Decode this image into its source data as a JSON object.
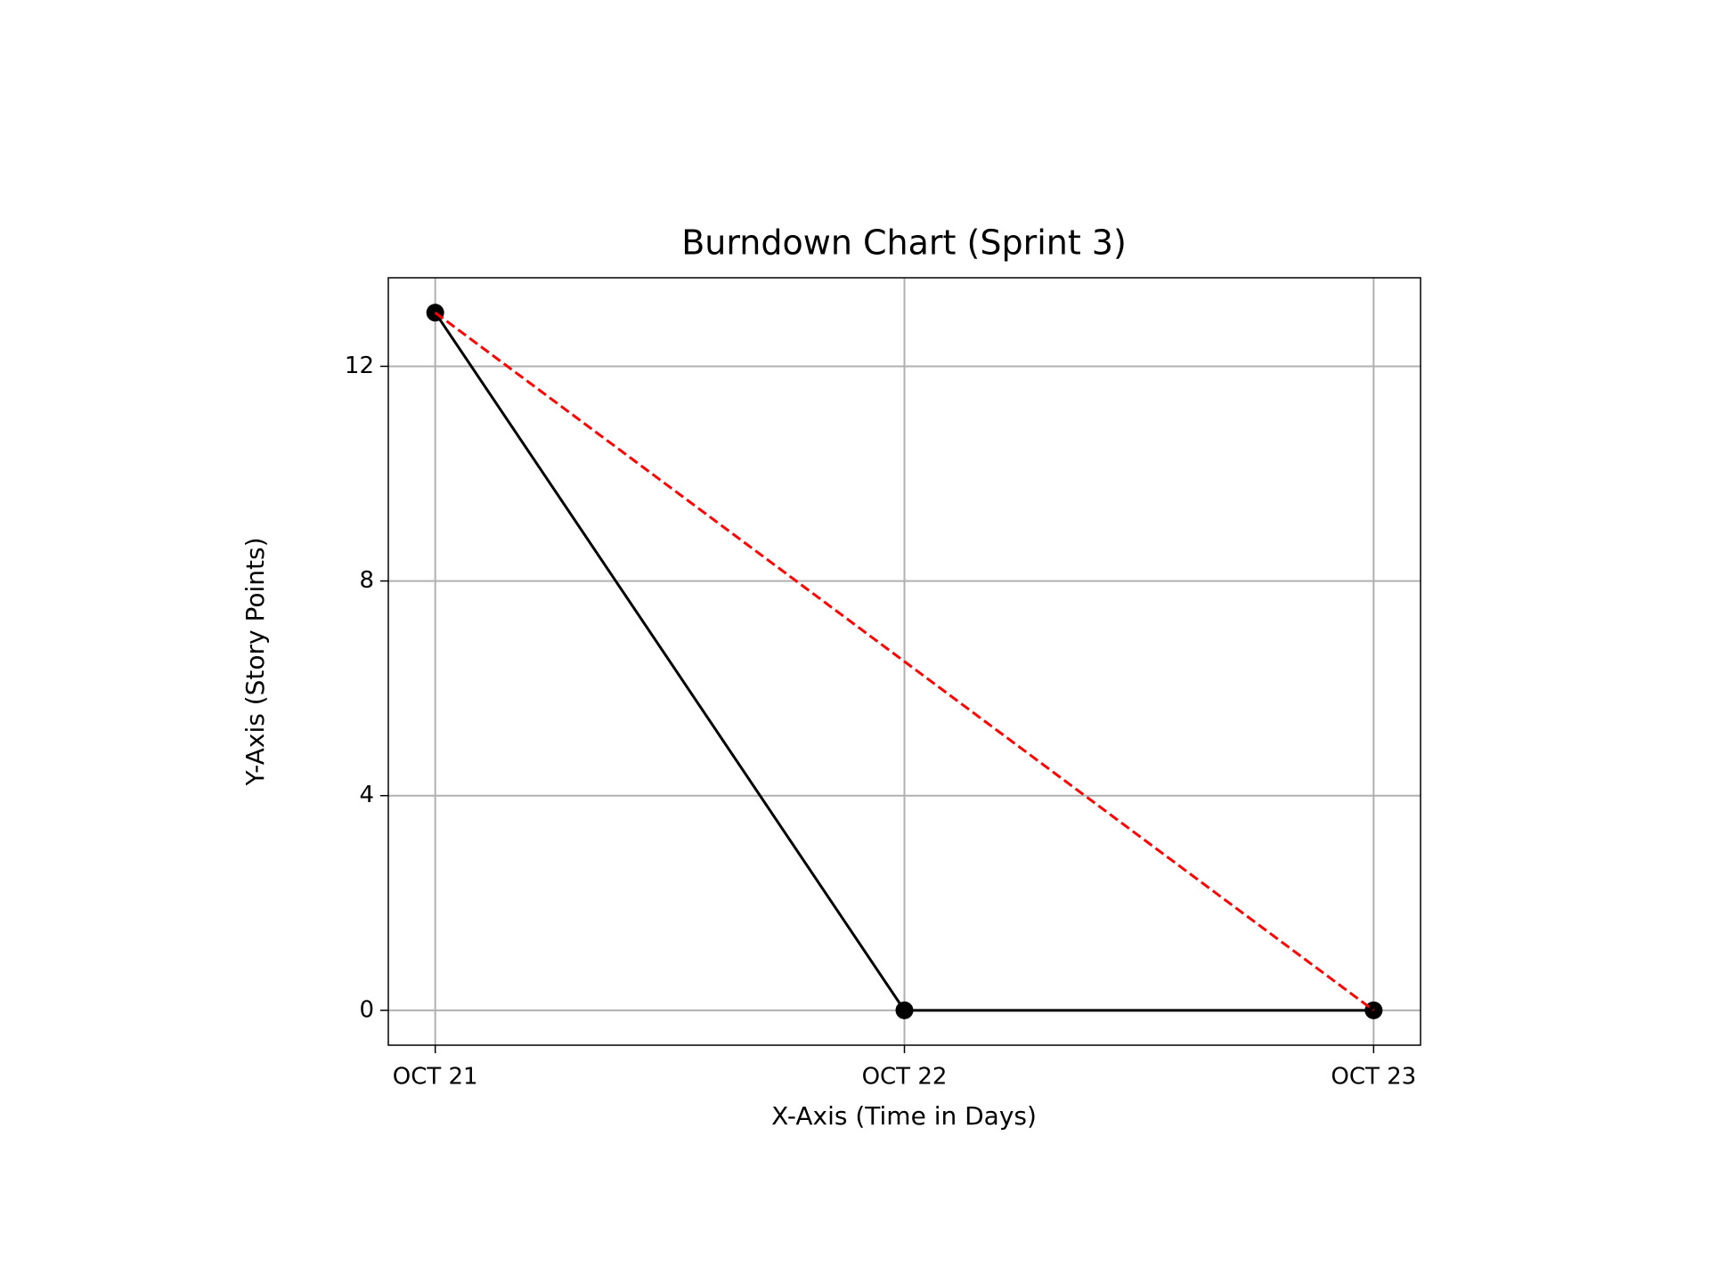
{
  "chart_data": {
    "type": "line",
    "title": "Burndown Chart (Sprint 3)",
    "x_label": "X-Axis (Time in Days)",
    "y_label": "Y-Axis (Story Points)",
    "categories": [
      "OCT 21",
      "OCT 22",
      "OCT 23"
    ],
    "series": [
      {
        "color": "#000000",
        "values": [
          13,
          0,
          0
        ],
        "linestyle": "solid",
        "marker": "circle"
      },
      {
        "color": "#ff0000",
        "values": [
          13,
          6.5,
          0
        ],
        "linestyle": "dashed",
        "marker": "none"
      }
    ],
    "ylim": [
      -0.65,
      13.65
    ],
    "yticks": [
      0,
      4,
      8,
      12
    ],
    "grid": true
  }
}
